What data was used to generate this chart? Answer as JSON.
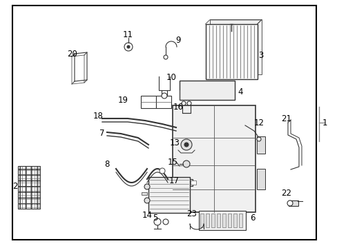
{
  "bg_color": "#ffffff",
  "border_color": "#000000",
  "text_color": "#000000",
  "fig_width": 4.89,
  "fig_height": 3.6,
  "dpi": 100
}
